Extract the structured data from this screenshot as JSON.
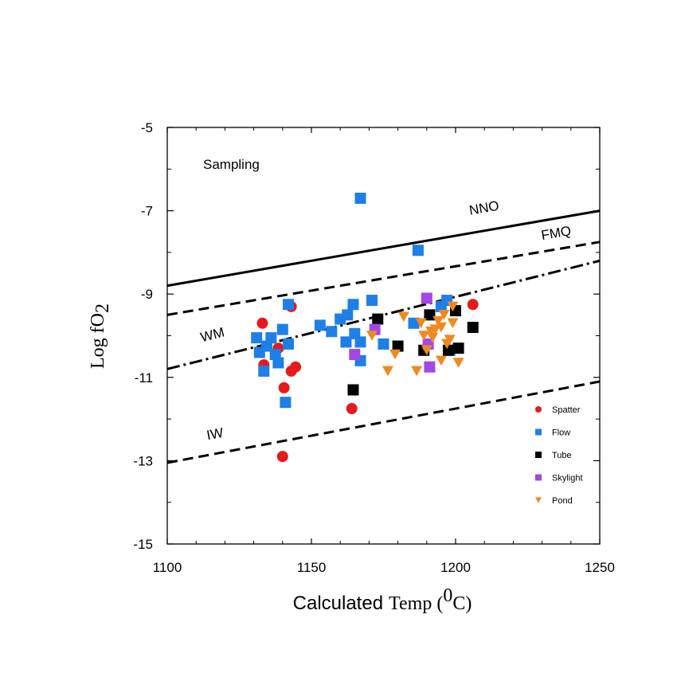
{
  "chart_data": {
    "type": "scatter",
    "title": "Sampling",
    "xlabel": {
      "part1": "Calculated",
      "part2": "Temp (",
      "sup": "0",
      "part3": "C)"
    },
    "ylabel": {
      "base": "Log fO",
      "sub": "2"
    },
    "xlim": [
      1100,
      1250
    ],
    "ylim": [
      -15,
      -5
    ],
    "x_ticks": [
      1100,
      1150,
      1200,
      1250
    ],
    "x_tick_labels": [
      "1100",
      "1150",
      "1200",
      "1250"
    ],
    "y_ticks": [
      -5,
      -7,
      -9,
      -11,
      -13,
      -15
    ],
    "y_tick_labels": [
      "-5",
      "-7",
      "-9",
      "-11",
      "-13",
      "-15"
    ],
    "grid": false,
    "legend_position": "bottom-right",
    "buffers": [
      {
        "name": "NNO",
        "style": "solid",
        "points": [
          [
            1100,
            -8.8
          ],
          [
            1250,
            -7.0
          ]
        ],
        "label_at": [
          1205,
          -7.1
        ]
      },
      {
        "name": "FMQ",
        "style": "dashed",
        "points": [
          [
            1100,
            -9.5
          ],
          [
            1250,
            -7.75
          ]
        ],
        "label_at": [
          1230,
          -7.7
        ]
      },
      {
        "name": "WM",
        "style": "dashdot",
        "points": [
          [
            1100,
            -10.8
          ],
          [
            1250,
            -8.2
          ]
        ],
        "label_at": [
          1112,
          -10.15
        ]
      },
      {
        "name": "IW",
        "style": "dashed",
        "points": [
          [
            1100,
            -13.05
          ],
          [
            1250,
            -11.1
          ]
        ],
        "label_at": [
          1114,
          -12.5
        ]
      }
    ],
    "series": [
      {
        "name": "Spatter",
        "marker": "circle",
        "color": "#e8191c",
        "points": [
          [
            1133,
            -9.7
          ],
          [
            1143,
            -9.3
          ],
          [
            1138.5,
            -10.3
          ],
          [
            1133.5,
            -10.7
          ],
          [
            1144.5,
            -10.75
          ],
          [
            1143,
            -10.85
          ],
          [
            1140.5,
            -11.25
          ],
          [
            1164,
            -11.75
          ],
          [
            1140,
            -12.9
          ],
          [
            1206,
            -9.25
          ]
        ]
      },
      {
        "name": "Flow",
        "marker": "square",
        "color": "#1e7fe6",
        "points": [
          [
            1167,
            -6.7
          ],
          [
            1187,
            -7.95
          ],
          [
            1142,
            -9.25
          ],
          [
            1171,
            -9.15
          ],
          [
            1131,
            -10.05
          ],
          [
            1132,
            -10.4
          ],
          [
            1134.5,
            -10.25
          ],
          [
            1136,
            -10.05
          ],
          [
            1137.5,
            -10.45
          ],
          [
            1133.5,
            -10.85
          ],
          [
            1138.5,
            -10.65
          ],
          [
            1140,
            -9.85
          ],
          [
            1142,
            -10.2
          ],
          [
            1153,
            -9.75
          ],
          [
            1157,
            -9.9
          ],
          [
            1160,
            -9.6
          ],
          [
            1162.5,
            -9.5
          ],
          [
            1164.5,
            -9.25
          ],
          [
            1162,
            -10.15
          ],
          [
            1165,
            -9.95
          ],
          [
            1167,
            -10.15
          ],
          [
            1167,
            -10.6
          ],
          [
            1175,
            -10.2
          ],
          [
            1185.5,
            -9.7
          ],
          [
            1195,
            -9.3
          ],
          [
            1197,
            -9.15
          ],
          [
            1198,
            -10.35
          ],
          [
            1141,
            -11.6
          ]
        ]
      },
      {
        "name": "Tube",
        "marker": "square",
        "color": "#000000",
        "points": [
          [
            1164.5,
            -11.3
          ],
          [
            1173,
            -9.6
          ],
          [
            1180,
            -10.25
          ],
          [
            1189,
            -10.35
          ],
          [
            1191,
            -9.5
          ],
          [
            1197.5,
            -10.35
          ],
          [
            1200,
            -9.4
          ],
          [
            1201,
            -10.3
          ],
          [
            1206,
            -9.8
          ]
        ]
      },
      {
        "name": "Skylight",
        "marker": "square",
        "color": "#a347e6",
        "points": [
          [
            1172,
            -9.85
          ],
          [
            1165,
            -10.45
          ],
          [
            1190,
            -9.1
          ],
          [
            1190.5,
            -10.2
          ],
          [
            1191,
            -10.75
          ]
        ]
      },
      {
        "name": "Pond",
        "marker": "triangle-down",
        "color": "#f0891e",
        "points": [
          [
            1171,
            -10.0
          ],
          [
            1179,
            -10.45
          ],
          [
            1182,
            -9.55
          ],
          [
            1176.5,
            -10.85
          ],
          [
            1186.5,
            -10.85
          ],
          [
            1188,
            -9.7
          ],
          [
            1189,
            -10.0
          ],
          [
            1190,
            -10.35
          ],
          [
            1192,
            -10.05
          ],
          [
            1193,
            -9.85
          ],
          [
            1194,
            -9.65
          ],
          [
            1195,
            -9.8
          ],
          [
            1196,
            -9.5
          ],
          [
            1197,
            -10.2
          ],
          [
            1199,
            -9.3
          ],
          [
            1199,
            -9.7
          ],
          [
            1198,
            -10.1
          ],
          [
            1201,
            -10.65
          ],
          [
            1195,
            -10.6
          ],
          [
            1191.5,
            -9.9
          ]
        ]
      }
    ]
  }
}
